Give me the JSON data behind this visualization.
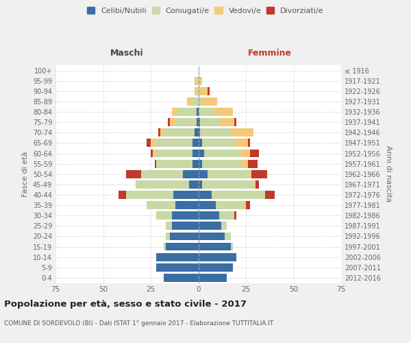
{
  "age_groups": [
    "0-4",
    "5-9",
    "10-14",
    "15-19",
    "20-24",
    "25-29",
    "30-34",
    "35-39",
    "40-44",
    "45-49",
    "50-54",
    "55-59",
    "60-64",
    "65-69",
    "70-74",
    "75-79",
    "80-84",
    "85-89",
    "90-94",
    "95-99",
    "100+"
  ],
  "birth_years": [
    "2012-2016",
    "2007-2011",
    "2002-2006",
    "1997-2001",
    "1992-1996",
    "1987-1991",
    "1982-1986",
    "1977-1981",
    "1972-1976",
    "1967-1971",
    "1962-1966",
    "1957-1961",
    "1952-1956",
    "1947-1951",
    "1942-1946",
    "1937-1941",
    "1932-1936",
    "1927-1931",
    "1922-1926",
    "1917-1921",
    "≤ 1916"
  ],
  "maschi": {
    "celibi": [
      18,
      22,
      22,
      17,
      15,
      14,
      14,
      12,
      13,
      5,
      8,
      3,
      3,
      3,
      2,
      1,
      1,
      0,
      0,
      0,
      0
    ],
    "coniugati": [
      0,
      0,
      0,
      1,
      2,
      3,
      8,
      15,
      25,
      28,
      22,
      19,
      20,
      20,
      16,
      11,
      10,
      3,
      1,
      1,
      0
    ],
    "vedovi": [
      0,
      0,
      0,
      0,
      0,
      0,
      0,
      0,
      0,
      0,
      0,
      0,
      1,
      2,
      2,
      3,
      3,
      3,
      1,
      1,
      0
    ],
    "divorziati": [
      0,
      0,
      0,
      0,
      0,
      0,
      0,
      0,
      4,
      0,
      8,
      1,
      1,
      2,
      1,
      1,
      0,
      0,
      0,
      0,
      0
    ]
  },
  "femmine": {
    "nubili": [
      15,
      18,
      20,
      17,
      14,
      12,
      11,
      9,
      7,
      2,
      5,
      2,
      3,
      2,
      1,
      1,
      0,
      0,
      0,
      0,
      0
    ],
    "coniugate": [
      0,
      0,
      0,
      1,
      3,
      3,
      8,
      15,
      28,
      27,
      22,
      21,
      20,
      18,
      16,
      10,
      8,
      2,
      1,
      0,
      0
    ],
    "vedove": [
      0,
      0,
      0,
      0,
      0,
      0,
      0,
      1,
      0,
      1,
      1,
      3,
      4,
      6,
      12,
      8,
      10,
      8,
      4,
      2,
      0
    ],
    "divorziate": [
      0,
      0,
      0,
      0,
      0,
      0,
      1,
      2,
      5,
      2,
      8,
      5,
      5,
      1,
      0,
      1,
      0,
      0,
      1,
      0,
      0
    ]
  },
  "colors": {
    "celibi": "#3A6EA5",
    "coniugati": "#C8D9A5",
    "vedovi": "#F5C97A",
    "divorziati": "#C0392B"
  },
  "xlim": 75,
  "title": "Popolazione per età, sesso e stato civile - 2017",
  "subtitle": "COMUNE DI SORDEVOLO (BI) - Dati ISTAT 1° gennaio 2017 - Elaborazione TUTTITALIA.IT",
  "ylabel_left": "Fasce di età",
  "ylabel_right": "Anni di nascita",
  "xlabel_maschi": "Maschi",
  "xlabel_femmine": "Femmine",
  "bg_color": "#f0f0f0",
  "plot_bg_color": "#ffffff",
  "grid_color": "#cccccc",
  "legend_labels": [
    "Celibi/Nubili",
    "Coniugati/e",
    "Vedovi/e",
    "Divorziati/e"
  ]
}
